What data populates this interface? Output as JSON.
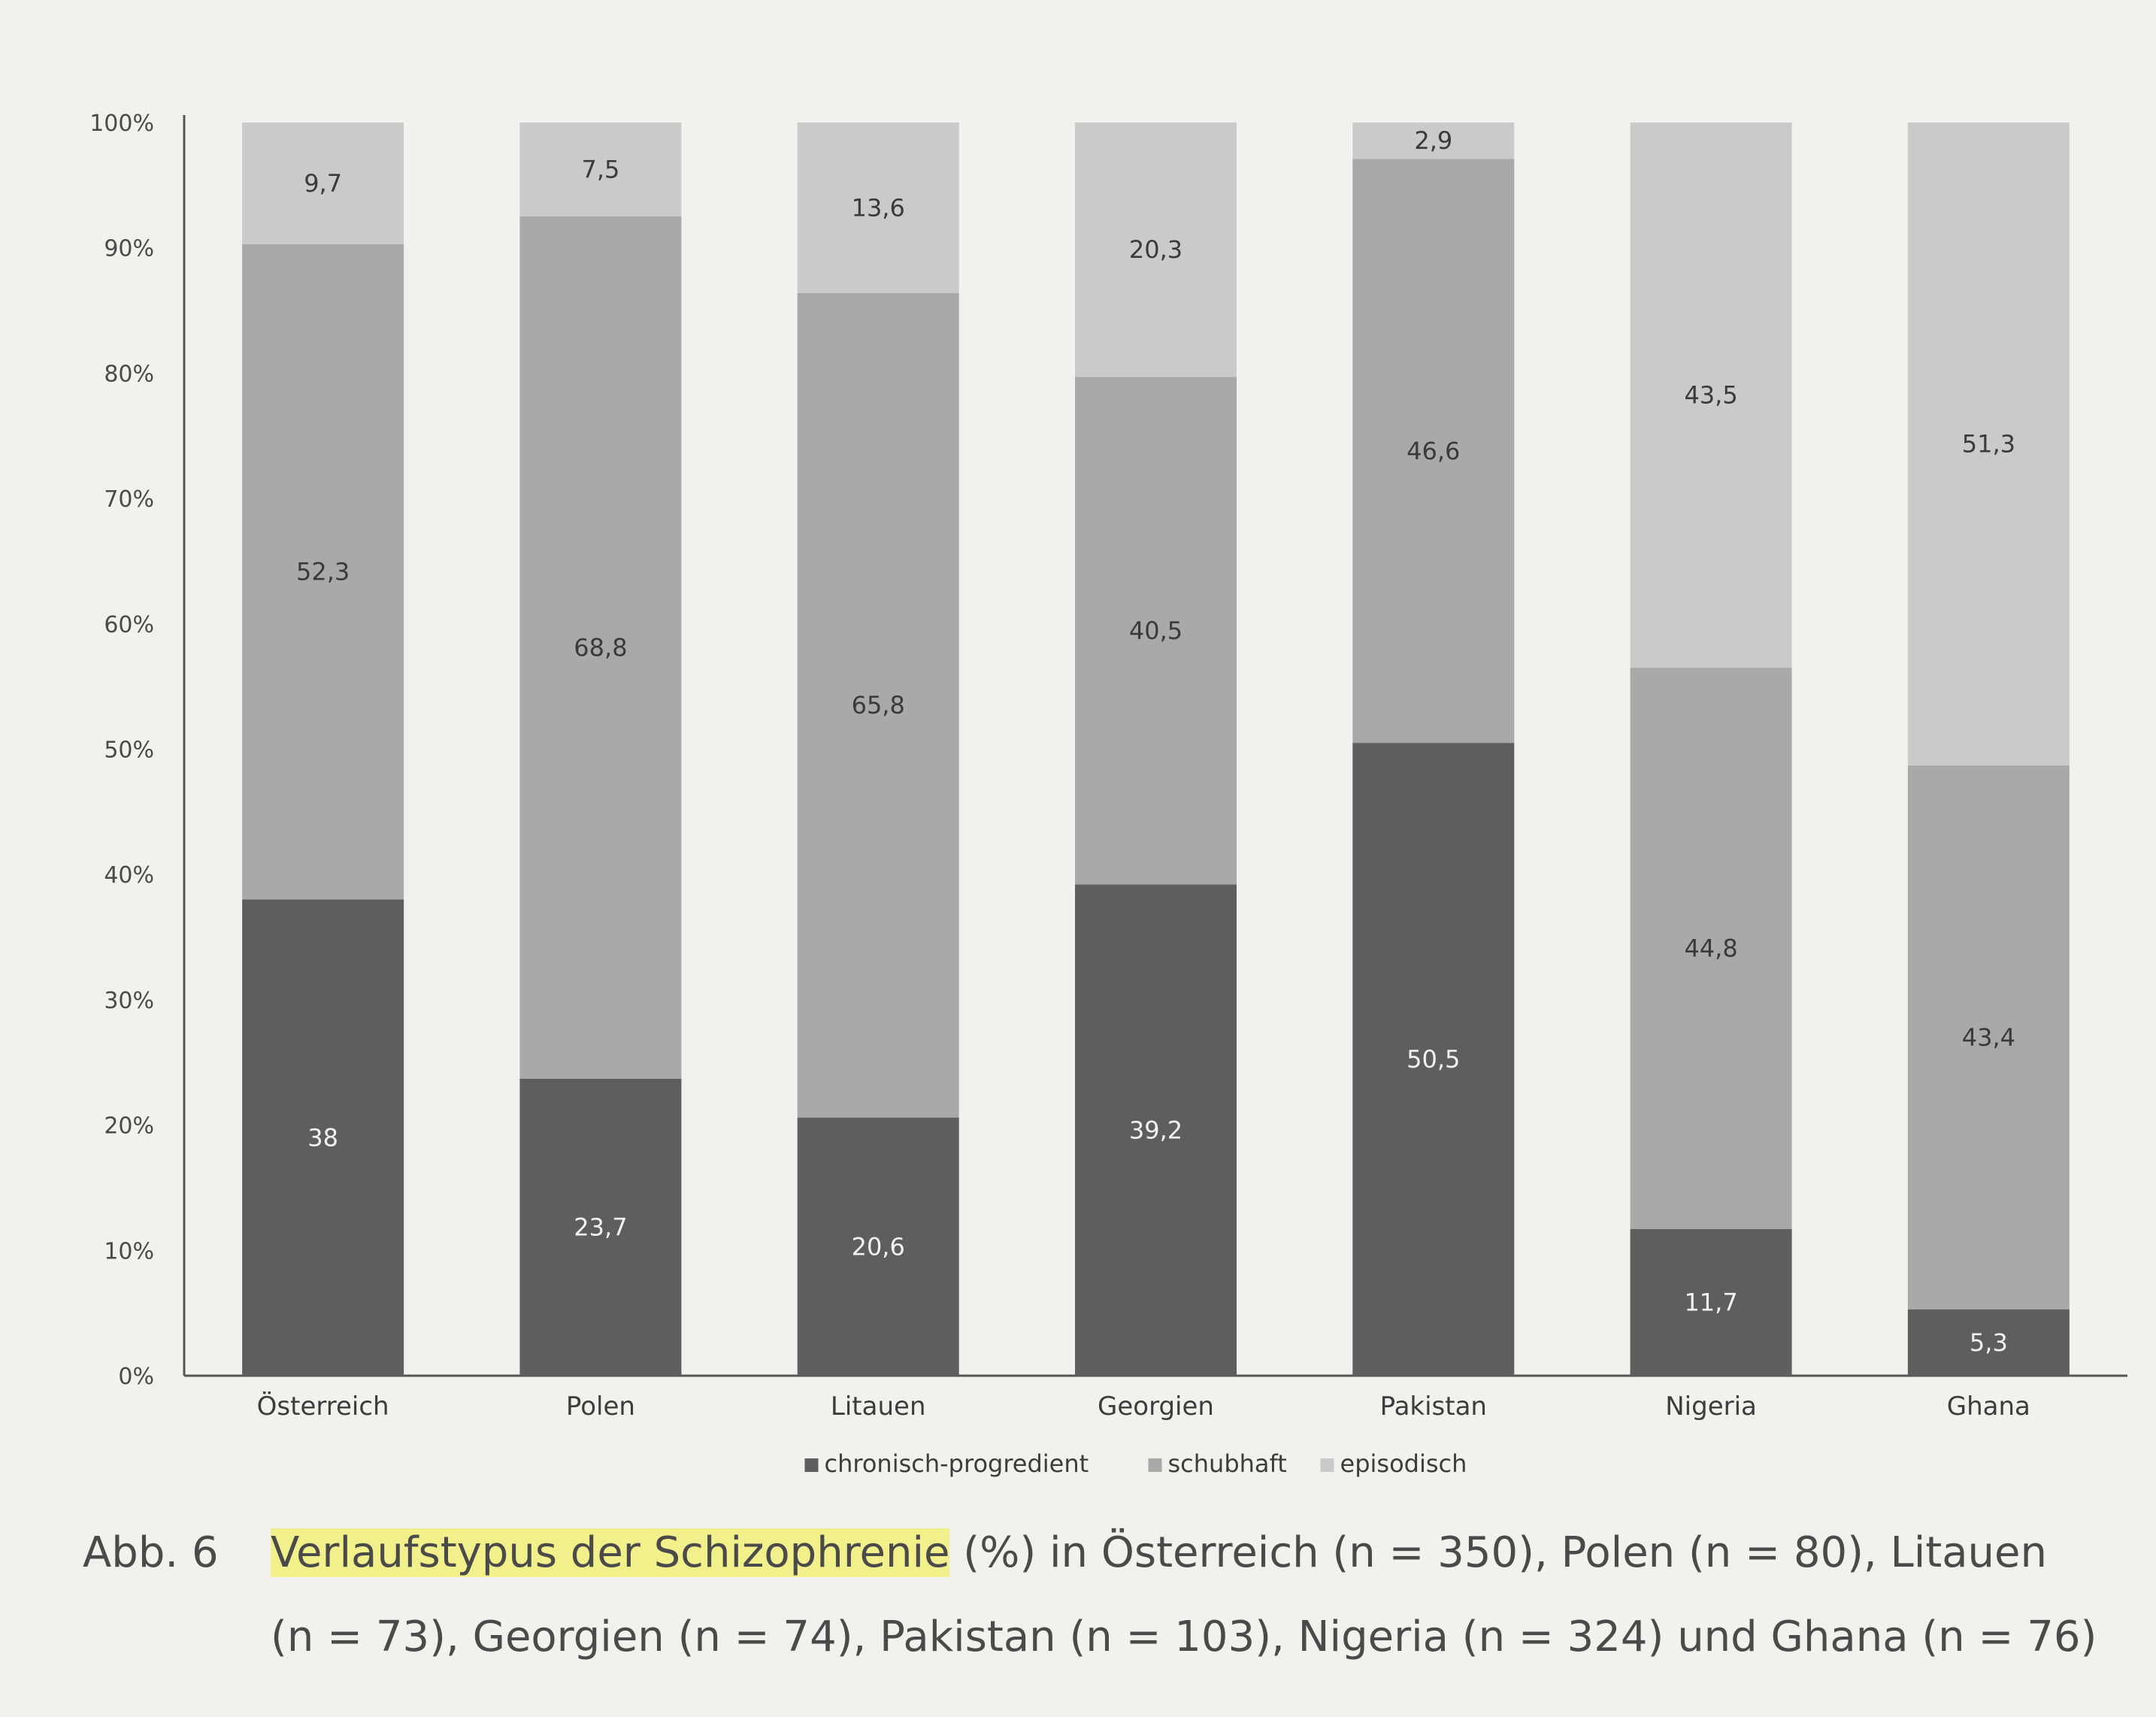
{
  "chart_data": {
    "type": "bar",
    "stacked": true,
    "categories": [
      "Österreich",
      "Polen",
      "Litauen",
      "Georgien",
      "Pakistan",
      "Nigeria",
      "Ghana"
    ],
    "series": [
      {
        "name": "chronisch-progredient",
        "values": [
          38,
          23.7,
          20.6,
          39.2,
          50.5,
          11.7,
          5.3
        ],
        "labels": [
          "38",
          "23,7",
          "20,6",
          "39,2",
          "50,5",
          "11,7",
          "5,3"
        ],
        "color": "#5e5e5e"
      },
      {
        "name": "schubhaft",
        "values": [
          52.3,
          68.8,
          65.8,
          40.5,
          46.6,
          44.8,
          43.4
        ],
        "labels": [
          "52,3",
          "68,8",
          "65,8",
          "40,5",
          "46,6",
          "44,8",
          "43,4"
        ],
        "color": "#a9a9a9"
      },
      {
        "name": "episodisch",
        "values": [
          9.7,
          7.5,
          13.6,
          20.3,
          2.9,
          43.5,
          51.3
        ],
        "labels": [
          "9,7",
          "7,5",
          "13,6",
          "20,3",
          "2,9",
          "43,5",
          "51,3"
        ],
        "color": "#cacaca"
      }
    ],
    "ylim": [
      0,
      100
    ],
    "yticks": [
      "0%",
      "10%",
      "20%",
      "30%",
      "40%",
      "50%",
      "60%",
      "70%",
      "80%",
      "90%",
      "100%"
    ],
    "legend_position": "bottom-center",
    "grid": false
  },
  "caption": {
    "label": "Abb. 6",
    "highlighted": "Verlaufstypus der Schizophrenie",
    "rest_line1": " (%) in Österreich (n = 350), Polen (n = 80), Litauen",
    "line2": "(n = 73), Georgien (n = 74), Pakistan (n = 103), Nigeria (n = 324) und Ghana (n = 76)"
  }
}
